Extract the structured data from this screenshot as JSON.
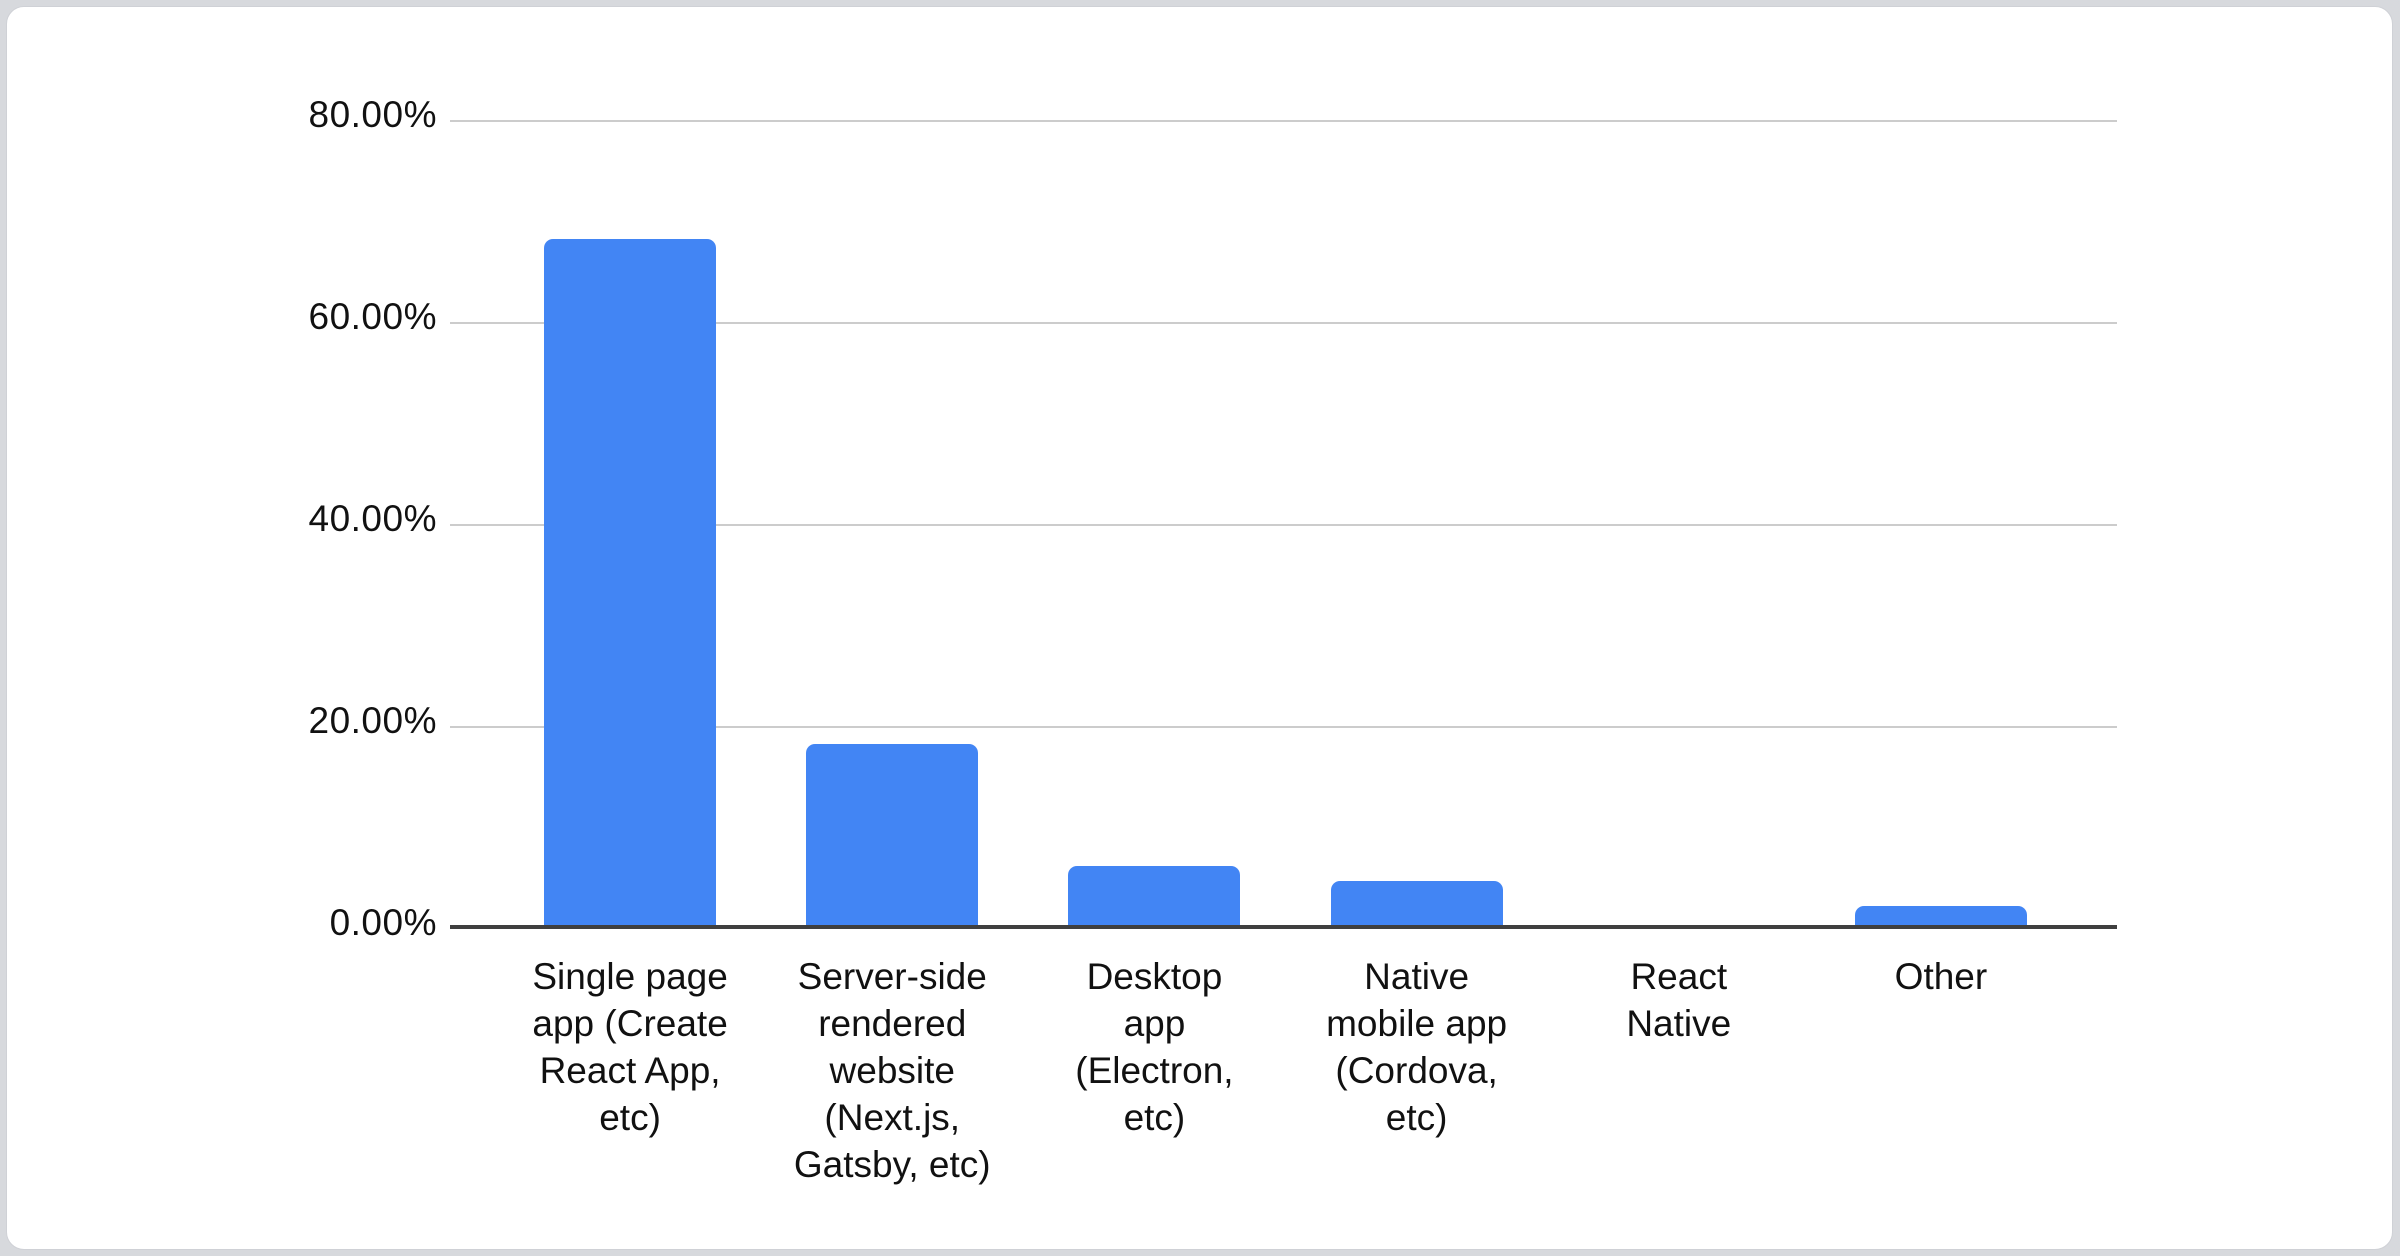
{
  "page": {
    "background_color": "#d7d9dd",
    "card_background_color": "#ffffff"
  },
  "chart_data": {
    "type": "bar",
    "title": "",
    "xlabel": "",
    "ylabel": "",
    "categories": [
      "Single page app (Create React App, etc)",
      "Server-side rendered website (Next.js, Gatsby, etc)",
      "Desktop app (Electron, etc)",
      "Native mobile app (Cordova, etc)",
      "React Native",
      "Other"
    ],
    "category_lines": [
      [
        "Single page",
        "app (Create",
        "React App,",
        "etc)"
      ],
      [
        "Server-side",
        "rendered",
        "website",
        "(Next.js,",
        "Gatsby, etc)"
      ],
      [
        "Desktop",
        "app",
        "(Electron,",
        "etc)"
      ],
      [
        "Native",
        "mobile app",
        "(Cordova,",
        "etc)"
      ],
      [
        "React",
        "Native"
      ],
      [
        "Other"
      ]
    ],
    "values": [
      68.2,
      18.3,
      6.2,
      4.7,
      0,
      2.3
    ],
    "unit": "%",
    "ylim": [
      0,
      80
    ],
    "yticks": [
      "80.00%",
      "60.00%",
      "40.00%",
      "20.00%",
      "0.00%"
    ],
    "grid": true,
    "legend_position": "none",
    "bar_color": "#4285f4",
    "gridline_color": "#cccccc",
    "axis_line_color": "#3f3f3f",
    "label_color": "#111111"
  }
}
